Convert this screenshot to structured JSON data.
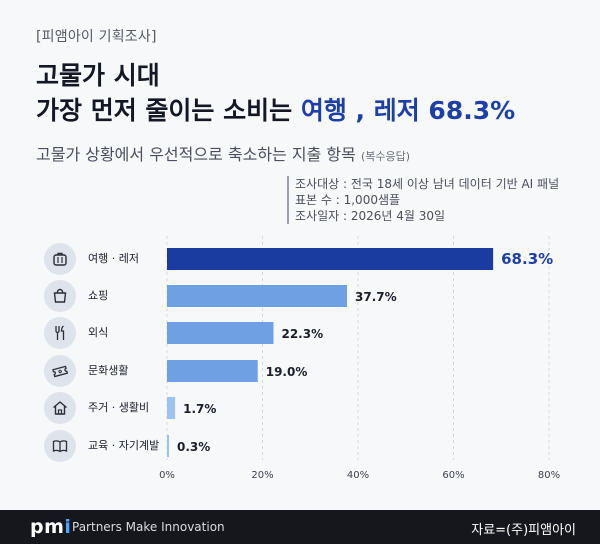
{
  "header": {
    "tag": "[피앰아이 기획조사]",
    "headline_line1": "고물가 시대",
    "headline_line2_prefix": "가장 먼저 줄이는 소비는 ",
    "headline_line2_highlight": "여행 , 레저 68.3%",
    "subtitle": "고물가 상황에서 우선적으로 축소하는 지출 항목",
    "subtitle_note": "(복수응답)"
  },
  "survey_info": {
    "target": "조사대상 : 전국 18세 이상 남녀 데이터 기반 AI 패널",
    "sample": "표본 수 : 1,000샘플",
    "date": "조사일자 : 2026년 4월 30일"
  },
  "colors": {
    "highlight_bar": "#1a3ca0",
    "bar": "#6fa0e3",
    "bar_light": "#9fc1ee",
    "accent_text": "#1e3fa6"
  },
  "chart_data": {
    "type": "bar",
    "orientation": "horizontal",
    "categories": [
      "여행 · 레저",
      "쇼핑",
      "외식",
      "문화생활",
      "주거 · 생활비",
      "교육 · 자기계발"
    ],
    "icons": [
      "suitcase-icon",
      "shopping-bag-icon",
      "fork-knife-icon",
      "ticket-icon",
      "house-icon",
      "book-icon"
    ],
    "values": [
      68.3,
      37.7,
      22.3,
      19.0,
      1.7,
      0.3
    ],
    "value_labels": [
      "68.3%",
      "37.7%",
      "22.3%",
      "19.0%",
      "1.7%",
      "0.3%"
    ],
    "xlim": [
      0,
      80
    ],
    "xticks": [
      "0%",
      "20%",
      "40%",
      "60%",
      "80%"
    ],
    "grid": true
  },
  "footer": {
    "logo_main": "pm",
    "logo_accent": "i",
    "tagline": "Partners Make Innovation",
    "source": "자료=(주)피앰아이"
  }
}
